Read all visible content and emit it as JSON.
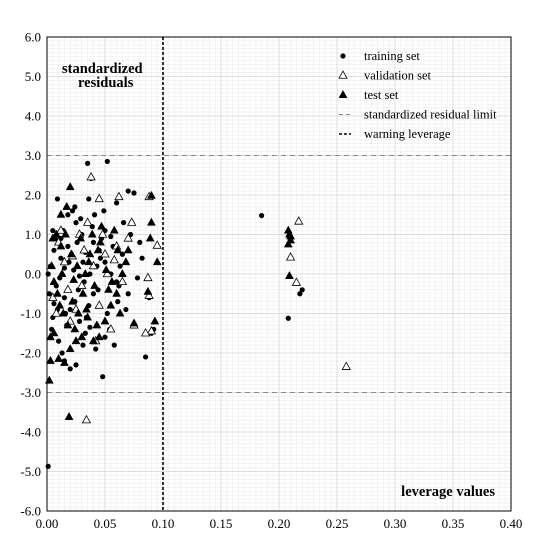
{
  "chart_data": {
    "type": "scatter",
    "title": "",
    "xlabel": "leverage values",
    "ylabel_lines": [
      "standardized",
      "residuals"
    ],
    "xlim": [
      0.0,
      0.4
    ],
    "ylim": [
      -6.0,
      6.0
    ],
    "x_ticks": [
      "0.00",
      "0.05",
      "0.10",
      "0.15",
      "0.20",
      "0.25",
      "0.30",
      "0.35",
      "0.40"
    ],
    "y_ticks": [
      "-6.0",
      "-5.0",
      "-4.0",
      "-3.0",
      "-2.0",
      "-1.0",
      "0.0",
      "1.0",
      "2.0",
      "3.0",
      "4.0",
      "5.0",
      "6.0"
    ],
    "grid": true,
    "legend_position": "top-right",
    "legend": [
      {
        "label": "training set",
        "marker": "filled-circle"
      },
      {
        "label": "validation set",
        "marker": "open-triangle"
      },
      {
        "label": "test set",
        "marker": "filled-triangle"
      },
      {
        "label": "standardized residual limit",
        "marker": "gray-dashed-line"
      },
      {
        "label": "warning leverage",
        "marker": "black-dashed-line"
      }
    ],
    "reference_lines": {
      "standardized_residual_limit": [
        -3.0,
        3.0
      ],
      "warning_leverage": 0.1
    },
    "series": [
      {
        "name": "training set",
        "points": [
          [
            0.001,
            -4.87
          ],
          [
            0.035,
            2.8
          ],
          [
            0.052,
            2.85
          ],
          [
            0.038,
            2.42
          ],
          [
            0.07,
            2.1
          ],
          [
            0.075,
            2.05
          ],
          [
            0.06,
            1.8
          ],
          [
            0.022,
            1.6
          ],
          [
            0.018,
            1.5
          ],
          [
            0.005,
            1.1
          ],
          [
            0.012,
            0.9
          ],
          [
            0.025,
            1.3
          ],
          [
            0.03,
            1.0
          ],
          [
            0.04,
            0.8
          ],
          [
            0.045,
            0.6
          ],
          [
            0.05,
            0.3
          ],
          [
            0.055,
            0.0
          ],
          [
            0.06,
            -0.2
          ],
          [
            0.065,
            0.5
          ],
          [
            0.07,
            -0.5
          ],
          [
            0.003,
            0.2
          ],
          [
            0.008,
            -0.3
          ],
          [
            0.015,
            -0.6
          ],
          [
            0.02,
            -0.9
          ],
          [
            0.028,
            -1.2
          ],
          [
            0.033,
            -1.5
          ],
          [
            0.042,
            -1.9
          ],
          [
            0.048,
            -2.6
          ],
          [
            0.025,
            -2.3
          ],
          [
            0.015,
            -2.2
          ],
          [
            0.01,
            -1.7
          ],
          [
            0.005,
            -1.1
          ],
          [
            0.002,
            -0.5
          ],
          [
            0.012,
            0.4
          ],
          [
            0.018,
            0.7
          ],
          [
            0.023,
            0.1
          ],
          [
            0.027,
            -0.4
          ],
          [
            0.031,
            0.3
          ],
          [
            0.036,
            -0.8
          ],
          [
            0.039,
            1.2
          ],
          [
            0.043,
            -1.3
          ],
          [
            0.047,
            0.9
          ],
          [
            0.052,
            -1.0
          ],
          [
            0.058,
            -1.8
          ],
          [
            0.063,
            0.2
          ],
          [
            0.068,
            -0.9
          ],
          [
            0.072,
            1.0
          ],
          [
            0.08,
            0.8
          ],
          [
            0.085,
            -2.1
          ],
          [
            0.09,
            -1.5
          ],
          [
            0.092,
            -1.4
          ],
          [
            0.088,
            -0.6
          ],
          [
            0.006,
            0.6
          ],
          [
            0.009,
            -0.9
          ],
          [
            0.014,
            1.1
          ],
          [
            0.017,
            -1.3
          ],
          [
            0.021,
            0.5
          ],
          [
            0.024,
            -0.7
          ],
          [
            0.029,
            1.4
          ],
          [
            0.032,
            -0.2
          ],
          [
            0.037,
            0.0
          ],
          [
            0.041,
            1.5
          ],
          [
            0.044,
            -0.4
          ],
          [
            0.049,
            1.6
          ],
          [
            0.054,
            -1.4
          ],
          [
            0.057,
            0.7
          ],
          [
            0.062,
            -0.3
          ],
          [
            0.066,
            1.3
          ],
          [
            0.001,
            0.0
          ],
          [
            0.004,
            -1.4
          ],
          [
            0.007,
            0.9
          ],
          [
            0.011,
            -0.1
          ],
          [
            0.016,
            -1.0
          ],
          [
            0.019,
            0.3
          ],
          [
            0.026,
            0.8
          ],
          [
            0.034,
            -1.1
          ],
          [
            0.04,
            -0.5
          ],
          [
            0.046,
            0.4
          ],
          [
            0.05,
            1.1
          ],
          [
            0.185,
            1.48
          ],
          [
            0.22,
            -0.4
          ],
          [
            0.218,
            -0.5
          ],
          [
            0.208,
            -1.12
          ],
          [
            0.078,
            -0.1
          ],
          [
            0.082,
            0.4
          ],
          [
            0.013,
            -2.0
          ],
          [
            0.02,
            -2.4
          ],
          [
            0.031,
            -1.8
          ],
          [
            0.036,
            1.9
          ],
          [
            0.009,
            1.9
          ],
          [
            0.05,
            -1.6
          ],
          [
            0.055,
            0.95
          ],
          [
            0.061,
            -0.7
          ],
          [
            0.024,
            1.7
          ],
          [
            0.028,
            -0.05
          ],
          [
            0.033,
            0.55
          ],
          [
            0.037,
            -1.35
          ],
          [
            0.015,
            0.15
          ],
          [
            0.006,
            -0.75
          ],
          [
            0.043,
            0.2
          ]
        ]
      },
      {
        "name": "validation set",
        "points": [
          [
            0.038,
            2.45
          ],
          [
            0.034,
            -3.7
          ],
          [
            0.045,
            1.9
          ],
          [
            0.062,
            1.95
          ],
          [
            0.088,
            1.95
          ],
          [
            0.095,
            0.72
          ],
          [
            0.087,
            -0.1
          ],
          [
            0.088,
            -0.55
          ],
          [
            0.09,
            -1.45
          ],
          [
            0.085,
            -1.5
          ],
          [
            0.073,
            1.3
          ],
          [
            0.06,
            0.7
          ],
          [
            0.05,
            0.5
          ],
          [
            0.04,
            0.2
          ],
          [
            0.03,
            -0.3
          ],
          [
            0.025,
            -0.9
          ],
          [
            0.02,
            -1.2
          ],
          [
            0.015,
            0.3
          ],
          [
            0.01,
            0.8
          ],
          [
            0.005,
            -0.6
          ],
          [
            0.045,
            -0.8
          ],
          [
            0.055,
            -1.4
          ],
          [
            0.065,
            -0.2
          ],
          [
            0.07,
            0.9
          ],
          [
            0.035,
            1.3
          ],
          [
            0.028,
            1.0
          ],
          [
            0.018,
            -0.4
          ],
          [
            0.012,
            1.1
          ],
          [
            0.008,
            -1.0
          ],
          [
            0.042,
            -1.7
          ],
          [
            0.052,
            0.0
          ],
          [
            0.058,
            0.35
          ],
          [
            0.217,
            1.33
          ],
          [
            0.21,
            0.42
          ],
          [
            0.215,
            -0.22
          ],
          [
            0.258,
            -2.35
          ],
          [
            0.075,
            -1.3
          ],
          [
            0.032,
            0.6
          ],
          [
            0.022,
            0.45
          ],
          [
            0.048,
            1.0
          ]
        ]
      },
      {
        "name": "test set",
        "points": [
          [
            0.02,
            2.2
          ],
          [
            0.002,
            -2.7
          ],
          [
            0.019,
            -3.62
          ],
          [
            0.09,
            1.98
          ],
          [
            0.095,
            0.3
          ],
          [
            0.093,
            -1.2
          ],
          [
            0.087,
            -0.45
          ],
          [
            0.089,
            0.9
          ],
          [
            0.09,
            1.3
          ],
          [
            0.075,
            -1.25
          ],
          [
            0.003,
            -1.6
          ],
          [
            0.003,
            -2.2
          ],
          [
            0.006,
            -1.5
          ],
          [
            0.01,
            -2.15
          ],
          [
            0.015,
            -2.25
          ],
          [
            0.02,
            -1.9
          ],
          [
            0.025,
            -1.7
          ],
          [
            0.03,
            -1.6
          ],
          [
            0.035,
            -1.1
          ],
          [
            0.04,
            -1.7
          ],
          [
            0.045,
            -1.6
          ],
          [
            0.05,
            -1.2
          ],
          [
            0.055,
            -0.8
          ],
          [
            0.06,
            -0.5
          ],
          [
            0.065,
            0.0
          ],
          [
            0.07,
            0.6
          ],
          [
            0.005,
            0.9
          ],
          [
            0.008,
            1.0
          ],
          [
            0.012,
            0.7
          ],
          [
            0.016,
            1.0
          ],
          [
            0.021,
            0.5
          ],
          [
            0.026,
            0.2
          ],
          [
            0.029,
            0.9
          ],
          [
            0.033,
            0.0
          ],
          [
            0.037,
            0.5
          ],
          [
            0.041,
            -0.3
          ],
          [
            0.046,
            0.8
          ],
          [
            0.051,
            0.1
          ],
          [
            0.056,
            -0.2
          ],
          [
            0.061,
            0.6
          ],
          [
            0.004,
            0.2
          ],
          [
            0.006,
            -0.2
          ],
          [
            0.009,
            -0.5
          ],
          [
            0.011,
            -0.8
          ],
          [
            0.014,
            -1.0
          ],
          [
            0.018,
            -1.3
          ],
          [
            0.022,
            -0.7
          ],
          [
            0.027,
            -1.0
          ],
          [
            0.031,
            -0.5
          ],
          [
            0.036,
            0.3
          ],
          [
            0.039,
            1.0
          ],
          [
            0.043,
            -1.3
          ],
          [
            0.047,
            1.2
          ],
          [
            0.053,
            -0.4
          ],
          [
            0.058,
            1.1
          ],
          [
            0.063,
            -1.0
          ],
          [
            0.068,
            0.3
          ],
          [
            0.012,
            1.5
          ],
          [
            0.017,
            1.7
          ],
          [
            0.024,
            -1.4
          ],
          [
            0.208,
            1.1
          ],
          [
            0.209,
            1.0
          ],
          [
            0.21,
            0.95
          ],
          [
            0.21,
            0.85
          ],
          [
            0.208,
            0.75
          ],
          [
            0.209,
            -0.05
          ],
          [
            0.013,
            0.0
          ],
          [
            0.023,
            -0.15
          ],
          [
            0.034,
            -0.9
          ],
          [
            0.044,
            0.6
          ]
        ]
      }
    ]
  }
}
